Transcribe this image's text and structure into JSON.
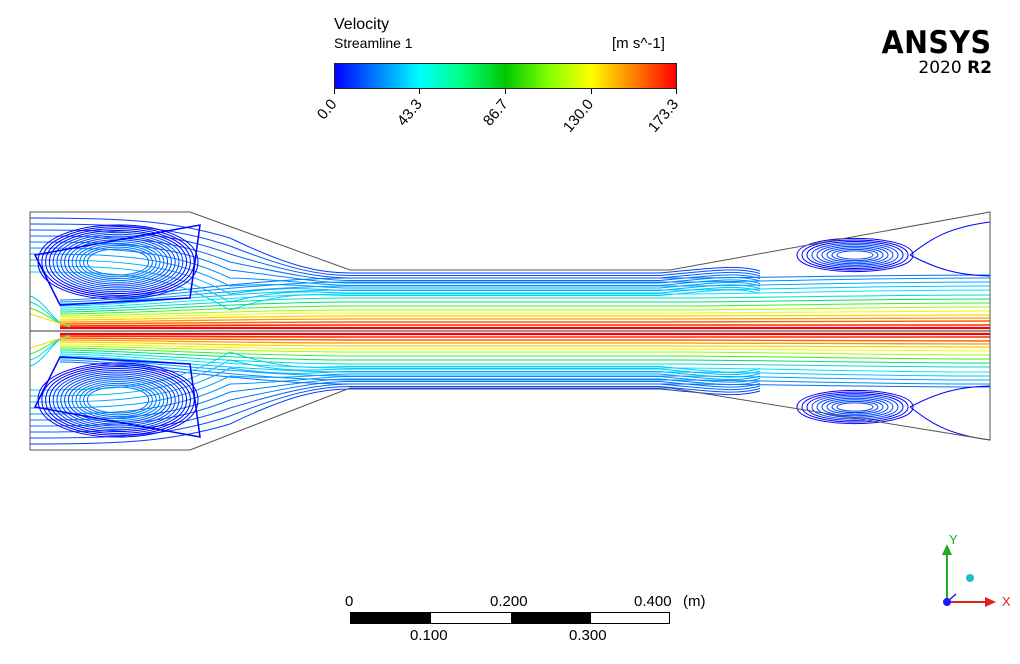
{
  "legend": {
    "title": "Velocity",
    "subtitle": "Streamline 1",
    "units": "[m s^-1]",
    "min": 0.0,
    "max": 173.3,
    "ticks": [
      "0.0",
      "43.3",
      "86.7",
      "130.0",
      "173.3"
    ],
    "colormap": [
      "#0000ff",
      "#0080ff",
      "#00ffff",
      "#00ff80",
      "#00c800",
      "#80ff00",
      "#ffff00",
      "#ff8000",
      "#ff0000"
    ]
  },
  "brand": {
    "name": "ANSYS",
    "version_year": "2020",
    "version_release": "R2"
  },
  "scale": {
    "top_labels": [
      "0",
      "0.200",
      "0.400"
    ],
    "bottom_labels": [
      "0.100",
      "0.300"
    ],
    "unit": "(m)"
  },
  "axes": {
    "y_label": "Y",
    "x_label": "X",
    "colors": {
      "y": "#22aa22",
      "x": "#dd2222",
      "z": "#1a1aff",
      "marker": "#22bbcc"
    }
  }
}
